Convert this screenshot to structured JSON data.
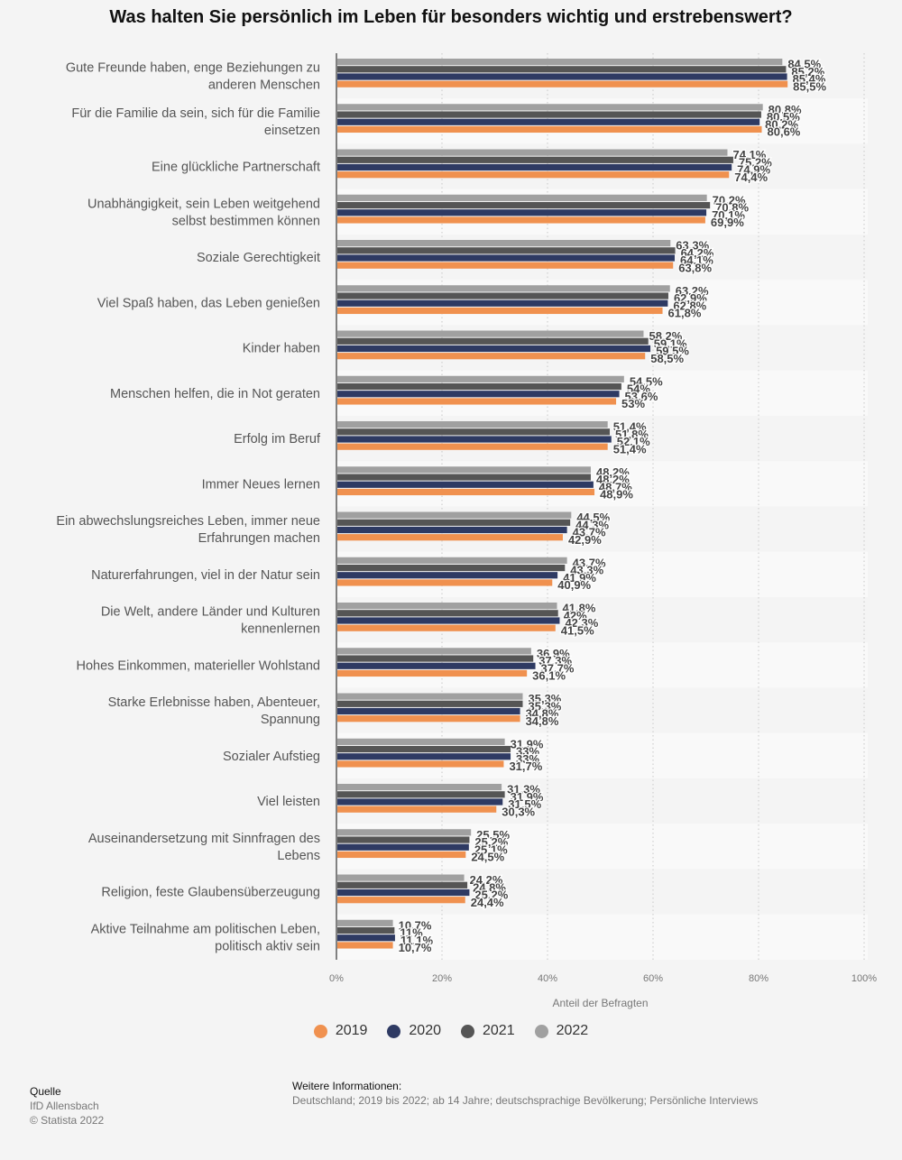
{
  "chart_data": {
    "type": "bar",
    "orientation": "horizontal",
    "title": "Was halten Sie persönlich im Leben für besonders wichtig und erstrebenswert?",
    "xlabel": "Anteil der Befragten",
    "xlim": [
      0,
      100
    ],
    "xticks": [
      "0%",
      "20%",
      "40%",
      "60%",
      "80%",
      "100%"
    ],
    "grid": true,
    "legend_position": "bottom",
    "categories": [
      "Gute Freunde haben, enge Beziehungen zu anderen Menschen",
      "Für die Familie da sein, sich für die Familie einsetzen",
      "Eine glückliche Partnerschaft",
      "Unabhängigkeit, sein Leben weitgehend selbst bestimmen können",
      "Soziale Gerechtigkeit",
      "Viel Spaß haben, das Leben genießen",
      "Kinder haben",
      "Menschen helfen, die in Not geraten",
      "Erfolg im Beruf",
      "Immer Neues lernen",
      "Ein abwechslungsreiches Leben, immer neue Erfahrungen machen",
      "Naturerfahrungen, viel in der Natur sein",
      "Die Welt, andere Länder und Kulturen kennenlernen",
      "Hohes Einkommen, materieller Wohlstand",
      "Starke Erlebnisse haben, Abenteuer, Spannung",
      "Sozialer Aufstieg",
      "Viel leisten",
      "Auseinandersetzung mit Sinnfragen des Lebens",
      "Religion, feste Glaubensüberzeugung",
      "Aktive Teilnahme am politischen Leben, politisch aktiv sein"
    ],
    "series": [
      {
        "name": "2022",
        "color": "#a0a0a0",
        "values": [
          84.5,
          80.8,
          74.1,
          70.2,
          63.3,
          63.2,
          58.2,
          54.5,
          51.4,
          48.2,
          44.5,
          43.7,
          41.8,
          36.9,
          35.3,
          31.9,
          31.3,
          25.5,
          24.2,
          10.7
        ],
        "labels": [
          "84,5%",
          "80,8%",
          "74,1%",
          "70,2%",
          "63,3%",
          "63,2%",
          "58,2%",
          "54,5%",
          "51,4%",
          "48,2%",
          "44,5%",
          "43,7%",
          "41,8%",
          "36,9%",
          "35,3%",
          "31,9%",
          "31,3%",
          "25,5%",
          "24,2%",
          "10,7%"
        ]
      },
      {
        "name": "2021",
        "color": "#555555",
        "values": [
          85.2,
          80.5,
          75.2,
          70.8,
          64.2,
          62.9,
          59.1,
          54,
          51.8,
          48.2,
          44.3,
          43.3,
          42,
          37.3,
          35.3,
          33,
          31.9,
          25.2,
          24.8,
          11
        ],
        "labels": [
          "85,2%",
          "80,5%",
          "75,2%",
          "70,8%",
          "64,2%",
          "62,9%",
          "59,1%",
          "54%",
          "51,8%",
          "48,2%",
          "44,3%",
          "43,3%",
          "42%",
          "37,3%",
          "35,3%",
          "33%",
          "31,9%",
          "25,2%",
          "24,8%",
          "11%"
        ]
      },
      {
        "name": "2020",
        "color": "#2e3a63",
        "values": [
          85.4,
          80.2,
          74.9,
          70.1,
          64.1,
          62.8,
          59.5,
          53.6,
          52.1,
          48.7,
          43.7,
          41.9,
          42.3,
          37.7,
          34.8,
          33,
          31.5,
          25.1,
          25.2,
          11.1
        ],
        "labels": [
          "85,4%",
          "80,2%",
          "74,9%",
          "70,1%",
          "64,1%",
          "62,8%",
          "59,5%",
          "53,6%",
          "52,1%",
          "48,7%",
          "43,7%",
          "41,9%",
          "42,3%",
          "37,7%",
          "34,8%",
          "33%",
          "31,5%",
          "25,1%",
          "25,2%",
          "11,1%"
        ]
      },
      {
        "name": "2019",
        "color": "#f0914f",
        "values": [
          85.5,
          80.6,
          74.4,
          69.9,
          63.8,
          61.8,
          58.5,
          53,
          51.4,
          48.9,
          42.9,
          40.9,
          41.5,
          36.1,
          34.8,
          31.7,
          30.3,
          24.5,
          24.4,
          10.7
        ],
        "labels": [
          "85,5%",
          "80,6%",
          "74,4%",
          "69,9%",
          "63,8%",
          "61,8%",
          "58,5%",
          "53%",
          "51,4%",
          "48,9%",
          "42,9%",
          "40,9%",
          "41,5%",
          "36,1%",
          "34,8%",
          "31,7%",
          "30,3%",
          "24,5%",
          "24,4%",
          "10,7%"
        ]
      }
    ],
    "category_label_lines": [
      [
        "Gute Freunde haben, enge Beziehungen zu",
        "anderen Menschen"
      ],
      [
        "Für die Familie da sein, sich für die Familie",
        "einsetzen"
      ],
      [
        "Eine glückliche Partnerschaft"
      ],
      [
        "Unabhängigkeit, sein Leben weitgehend",
        "selbst bestimmen können"
      ],
      [
        "Soziale Gerechtigkeit"
      ],
      [
        "Viel Spaß haben, das Leben genießen"
      ],
      [
        "Kinder haben"
      ],
      [
        "Menschen helfen, die in Not geraten"
      ],
      [
        "Erfolg im Beruf"
      ],
      [
        "Immer Neues lernen"
      ],
      [
        "Ein abwechslungsreiches Leben, immer neue",
        "Erfahrungen machen"
      ],
      [
        "Naturerfahrungen, viel in der Natur sein"
      ],
      [
        "Die Welt, andere Länder und Kulturen",
        "kennenlernen"
      ],
      [
        "Hohes Einkommen, materieller Wohlstand"
      ],
      [
        "Starke Erlebnisse haben, Abenteuer,",
        "Spannung"
      ],
      [
        "Sozialer Aufstieg"
      ],
      [
        "Viel leisten"
      ],
      [
        "Auseinandersetzung mit Sinnfragen des",
        "Lebens"
      ],
      [
        "Religion, feste Glaubensüberzeugung"
      ],
      [
        "Aktive Teilnahme am politischen Leben,",
        "politisch aktiv sein"
      ]
    ]
  },
  "legend": [
    {
      "label": "2019",
      "color": "#f0914f"
    },
    {
      "label": "2020",
      "color": "#2e3a63"
    },
    {
      "label": "2021",
      "color": "#555555"
    },
    {
      "label": "2022",
      "color": "#a0a0a0"
    }
  ],
  "source": {
    "heading": "Quelle",
    "lines": [
      "IfD Allensbach",
      "© Statista 2022"
    ]
  },
  "info": {
    "heading": "Weitere Informationen:",
    "text": "Deutschland; 2019 bis 2022; ab 14 Jahre; deutschsprachige Bevölkerung; Persönliche Interviews"
  }
}
